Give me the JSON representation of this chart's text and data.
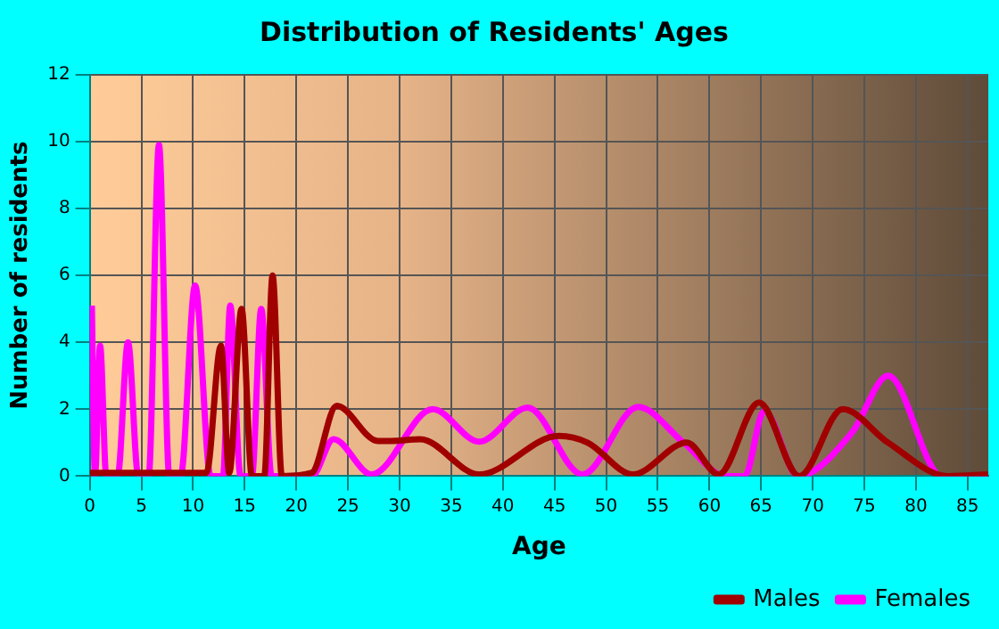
{
  "chart_data": {
    "type": "line",
    "title": "Distribution of Residents' Ages",
    "xlabel": "Age",
    "ylabel": "Number of residents",
    "xlim": [
      0,
      87
    ],
    "xticks": [
      0,
      5,
      10,
      15,
      20,
      25,
      30,
      35,
      40,
      45,
      50,
      55,
      60,
      65,
      70,
      75,
      80,
      85
    ],
    "ylim": [
      0,
      12
    ],
    "yticks": [
      0,
      2,
      4,
      6,
      8,
      10,
      12
    ],
    "grid": true,
    "legend": "bottom right",
    "marker": "none",
    "line_style": "solid",
    "series": [
      {
        "name": "Males",
        "color": "#a00000",
        "x": [
          0,
          11.3,
          12.7,
          13.5,
          14.7,
          15.7,
          16.9,
          17.7,
          18.6,
          21.5,
          23.9,
          27.9,
          29.1,
          32,
          37.7,
          45.4,
          48.2,
          52.6,
          57.8,
          60.9,
          64.8,
          68.7,
          72.9,
          77.3,
          83.1,
          87
        ],
        "values": [
          0.1,
          0.1,
          3.9,
          0.1,
          5,
          0,
          0,
          6,
          0,
          0.1,
          2.1,
          1.05,
          1.05,
          1.1,
          0.05,
          1.2,
          1,
          0.05,
          1,
          0.05,
          2.2,
          0,
          2,
          1,
          0,
          0.05
        ]
      },
      {
        "name": "Females",
        "color": "#ff00ff",
        "x": [
          0.2,
          0.5,
          1,
          1.6,
          2.7,
          3.7,
          4.7,
          5.7,
          6.7,
          7.7,
          8.8,
          10.2,
          11.7,
          12.9,
          13.6,
          14.6,
          15.7,
          16.6,
          17.6,
          21.5,
          23.6,
          27.3,
          33.2,
          37.7,
          42.4,
          47.7,
          53.1,
          57.5,
          61.6,
          63.4,
          65.3,
          68.6,
          73.8,
          77.3,
          82.5,
          87
        ],
        "values": [
          5.1,
          0,
          3.9,
          0,
          0,
          4,
          0,
          0,
          9.9,
          0,
          0,
          5.7,
          0,
          0,
          5.1,
          0,
          0,
          5,
          0,
          0,
          1.1,
          0.05,
          2,
          1.03,
          2.05,
          0.05,
          2.07,
          1,
          0,
          0,
          1.95,
          0,
          1.3,
          3,
          0,
          0
        ]
      }
    ]
  }
}
